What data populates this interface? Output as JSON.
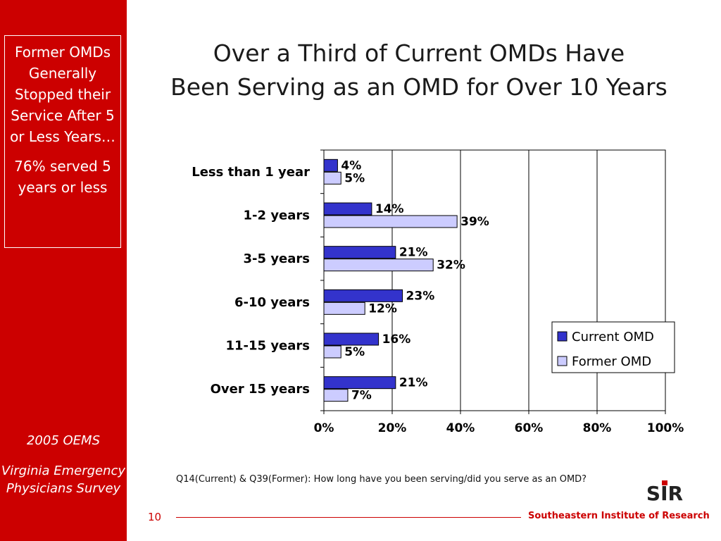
{
  "slide": {
    "title_line1": "Over a Third of Current OMDs Have",
    "title_line2": "Been Serving as an OMD for Over 10 Years",
    "page_number": "10",
    "footnote": "Q14(Current) & Q39(Former): How long have you been serving/did you serve as an OMD?",
    "organization": "Southeastern Institute of Research",
    "logo_text": "SIR"
  },
  "sidebar": {
    "callout_heading": "Former OMDs Generally Stopped their Service After 5 or Less Years…",
    "callout_stat": "76% served 5 years or less",
    "survey_year": "2005 OEMS",
    "survey_name": "Virginia Emergency Physicians Survey"
  },
  "colors": {
    "sidebar_red": "#cc0000",
    "current_bar": "#3333cc",
    "former_bar": "#ccccff"
  },
  "chart_data": {
    "type": "bar",
    "orientation": "horizontal",
    "categories": [
      "Less than 1 year",
      "1-2 years",
      "3-5 years",
      "6-10 years",
      "11-15 years",
      "Over 15 years"
    ],
    "series": [
      {
        "name": "Current OMD",
        "values": [
          4,
          14,
          21,
          23,
          16,
          21
        ],
        "labels": [
          "4%",
          "14%",
          "21%",
          "23%",
          "16%",
          "21%"
        ]
      },
      {
        "name": "Former OMD",
        "values": [
          5,
          39,
          32,
          12,
          5,
          7
        ],
        "labels": [
          "5%",
          "39%",
          "32%",
          "12%",
          "5%",
          "7%"
        ]
      }
    ],
    "xlim": [
      0,
      100
    ],
    "xticks": [
      0,
      20,
      40,
      60,
      80,
      100
    ],
    "xtick_labels": [
      "0%",
      "20%",
      "40%",
      "60%",
      "80%",
      "100%"
    ],
    "grid": "vertical",
    "legend_position": "right"
  }
}
